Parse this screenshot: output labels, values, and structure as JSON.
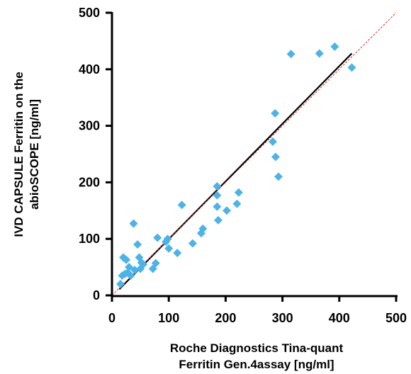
{
  "chart_data": {
    "type": "scatter",
    "title": "",
    "xlabel_lines": [
      "Roche Diagnostics Tina-quant",
      "Ferritin Gen.4assay [ng/ml]"
    ],
    "ylabel_lines": [
      "IVD CAPSULE Ferritin on the",
      "abioSCOPE [ng/ml]"
    ],
    "xlim": [
      0,
      500
    ],
    "ylim": [
      0,
      500
    ],
    "xticks": [
      0,
      100,
      200,
      300,
      400,
      500
    ],
    "yticks": [
      0,
      100,
      200,
      300,
      400,
      500
    ],
    "grid": false,
    "legend": "none",
    "marker": "diamond",
    "point_color": "#4db3e6",
    "regression_color": "#000000",
    "identity_color": "#e03020",
    "regression_line": {
      "x": [
        13,
        422
      ],
      "y": [
        11,
        428
      ]
    },
    "identity_line": {
      "x": [
        0,
        500
      ],
      "y": [
        0,
        500
      ]
    },
    "points": [
      {
        "x": 15,
        "y": 20
      },
      {
        "x": 18,
        "y": 35
      },
      {
        "x": 20,
        "y": 67
      },
      {
        "x": 23,
        "y": 38
      },
      {
        "x": 25,
        "y": 63
      },
      {
        "x": 28,
        "y": 40
      },
      {
        "x": 30,
        "y": 50
      },
      {
        "x": 33,
        "y": 35
      },
      {
        "x": 38,
        "y": 127
      },
      {
        "x": 40,
        "y": 45
      },
      {
        "x": 45,
        "y": 90
      },
      {
        "x": 48,
        "y": 67
      },
      {
        "x": 50,
        "y": 47
      },
      {
        "x": 52,
        "y": 58
      },
      {
        "x": 55,
        "y": 55
      },
      {
        "x": 72,
        "y": 47
      },
      {
        "x": 77,
        "y": 57
      },
      {
        "x": 80,
        "y": 102
      },
      {
        "x": 95,
        "y": 95
      },
      {
        "x": 98,
        "y": 100
      },
      {
        "x": 100,
        "y": 83
      },
      {
        "x": 115,
        "y": 75
      },
      {
        "x": 123,
        "y": 160
      },
      {
        "x": 142,
        "y": 92
      },
      {
        "x": 157,
        "y": 110
      },
      {
        "x": 160,
        "y": 118
      },
      {
        "x": 185,
        "y": 193
      },
      {
        "x": 185,
        "y": 177
      },
      {
        "x": 185,
        "y": 157
      },
      {
        "x": 187,
        "y": 133
      },
      {
        "x": 202,
        "y": 150
      },
      {
        "x": 220,
        "y": 162
      },
      {
        "x": 223,
        "y": 182
      },
      {
        "x": 283,
        "y": 272
      },
      {
        "x": 287,
        "y": 322
      },
      {
        "x": 288,
        "y": 245
      },
      {
        "x": 293,
        "y": 210
      },
      {
        "x": 315,
        "y": 427
      },
      {
        "x": 365,
        "y": 428
      },
      {
        "x": 392,
        "y": 440
      },
      {
        "x": 422,
        "y": 403
      }
    ]
  }
}
